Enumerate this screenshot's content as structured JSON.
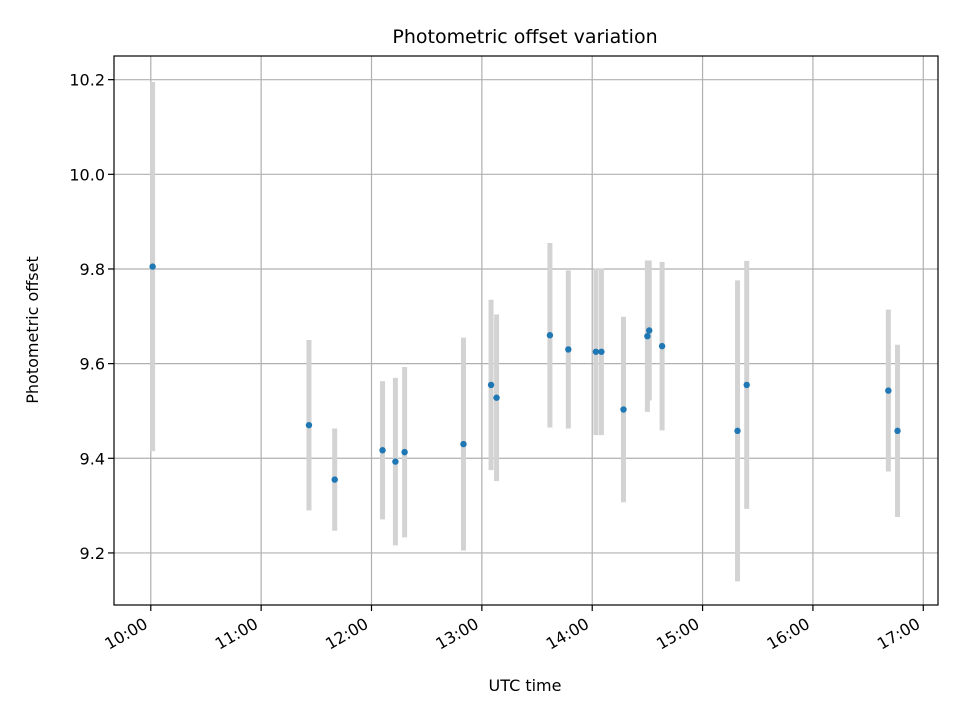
{
  "chart_data": {
    "type": "scatter",
    "title": "Photometric offset variation",
    "xlabel": "UTC time",
    "ylabel": "Photometric offset",
    "xlim": [
      "09:40",
      "17:08"
    ],
    "ylim": [
      9.09,
      10.25
    ],
    "x_ticks": [
      "10:00",
      "11:00",
      "12:00",
      "13:00",
      "14:00",
      "15:00",
      "16:00",
      "17:00"
    ],
    "y_ticks": [
      9.2,
      9.4,
      9.6,
      9.8,
      10.0,
      10.2
    ],
    "grid": true,
    "colors": {
      "point": "#1f77b4",
      "errorbar": "#d3d3d3",
      "grid": "#b0b0b0"
    },
    "points": [
      {
        "time": "10:01",
        "y": 9.805,
        "err": 0.39
      },
      {
        "time": "11:26",
        "y": 9.47,
        "err": 0.18
      },
      {
        "time": "11:40",
        "y": 9.355,
        "err": 0.108
      },
      {
        "time": "12:06",
        "y": 9.417,
        "err": 0.146
      },
      {
        "time": "12:13",
        "y": 9.393,
        "err": 0.177
      },
      {
        "time": "12:18",
        "y": 9.413,
        "err": 0.18
      },
      {
        "time": "12:50",
        "y": 9.43,
        "err": 0.225
      },
      {
        "time": "13:05",
        "y": 9.555,
        "err": 0.18
      },
      {
        "time": "13:08",
        "y": 9.528,
        "err": 0.176
      },
      {
        "time": "13:37",
        "y": 9.66,
        "err": 0.195
      },
      {
        "time": "13:47",
        "y": 9.63,
        "err": 0.167
      },
      {
        "time": "14:02",
        "y": 9.625,
        "err": 0.176
      },
      {
        "time": "14:05",
        "y": 9.625,
        "err": 0.176
      },
      {
        "time": "14:17",
        "y": 9.503,
        "err": 0.196
      },
      {
        "time": "14:30",
        "y": 9.658,
        "err": 0.16
      },
      {
        "time": "14:31",
        "y": 9.67,
        "err": 0.148
      },
      {
        "time": "14:38",
        "y": 9.637,
        "err": 0.178
      },
      {
        "time": "15:19",
        "y": 9.458,
        "err": 0.318
      },
      {
        "time": "15:24",
        "y": 9.555,
        "err": 0.262
      },
      {
        "time": "16:41",
        "y": 9.543,
        "err": 0.171
      },
      {
        "time": "16:46",
        "y": 9.458,
        "err": 0.182
      }
    ]
  }
}
